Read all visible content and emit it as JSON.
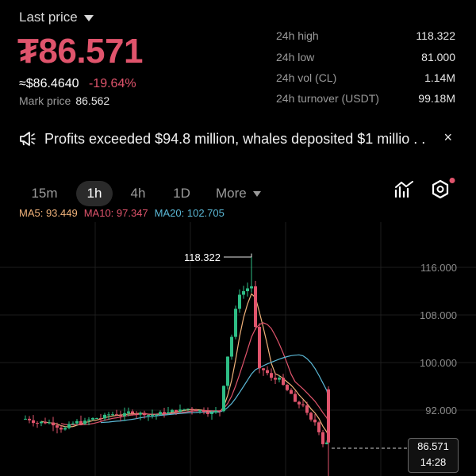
{
  "header": {
    "last_price_label": "Last price",
    "price": "₮86.571",
    "usd_value": "≈$86.4640",
    "change_pct": "-19.64%",
    "mark_price_label": "Mark price",
    "mark_price_value": "86.562"
  },
  "stats": [
    {
      "label": "24h high",
      "value": "118.322"
    },
    {
      "label": "24h low",
      "value": "81.000"
    },
    {
      "label": "24h vol (CL)",
      "value": "1.14M"
    },
    {
      "label": "24h turnover (USDT)",
      "value": "99.18M"
    }
  ],
  "news": {
    "text": "Profits exceeded $94.8 million, whales deposited $1 millio . .",
    "icon": "megaphone-icon",
    "close": "×"
  },
  "intervals": [
    {
      "label": "15m",
      "active": false
    },
    {
      "label": "1h",
      "active": true
    },
    {
      "label": "4h",
      "active": false
    },
    {
      "label": "1D",
      "active": false
    },
    {
      "label": "More",
      "active": false
    }
  ],
  "ma": {
    "ma5": "MA5: 93.449",
    "ma10": "MA10: 97.347",
    "ma20": "MA20: 102.705"
  },
  "colors": {
    "up": "#2ebd85",
    "down": "#e0546c",
    "ma5": "#f0b27a",
    "ma10": "#e0546c",
    "ma20": "#5bb8d6",
    "accent_dot": "#e0546c"
  },
  "chart_data": {
    "type": "candlestick",
    "y_ticks": [
      "116.000",
      "108.000",
      "100.000",
      "92.000"
    ],
    "high_marker": "118.322",
    "current_price": "86.571",
    "current_time": "14:28"
  }
}
